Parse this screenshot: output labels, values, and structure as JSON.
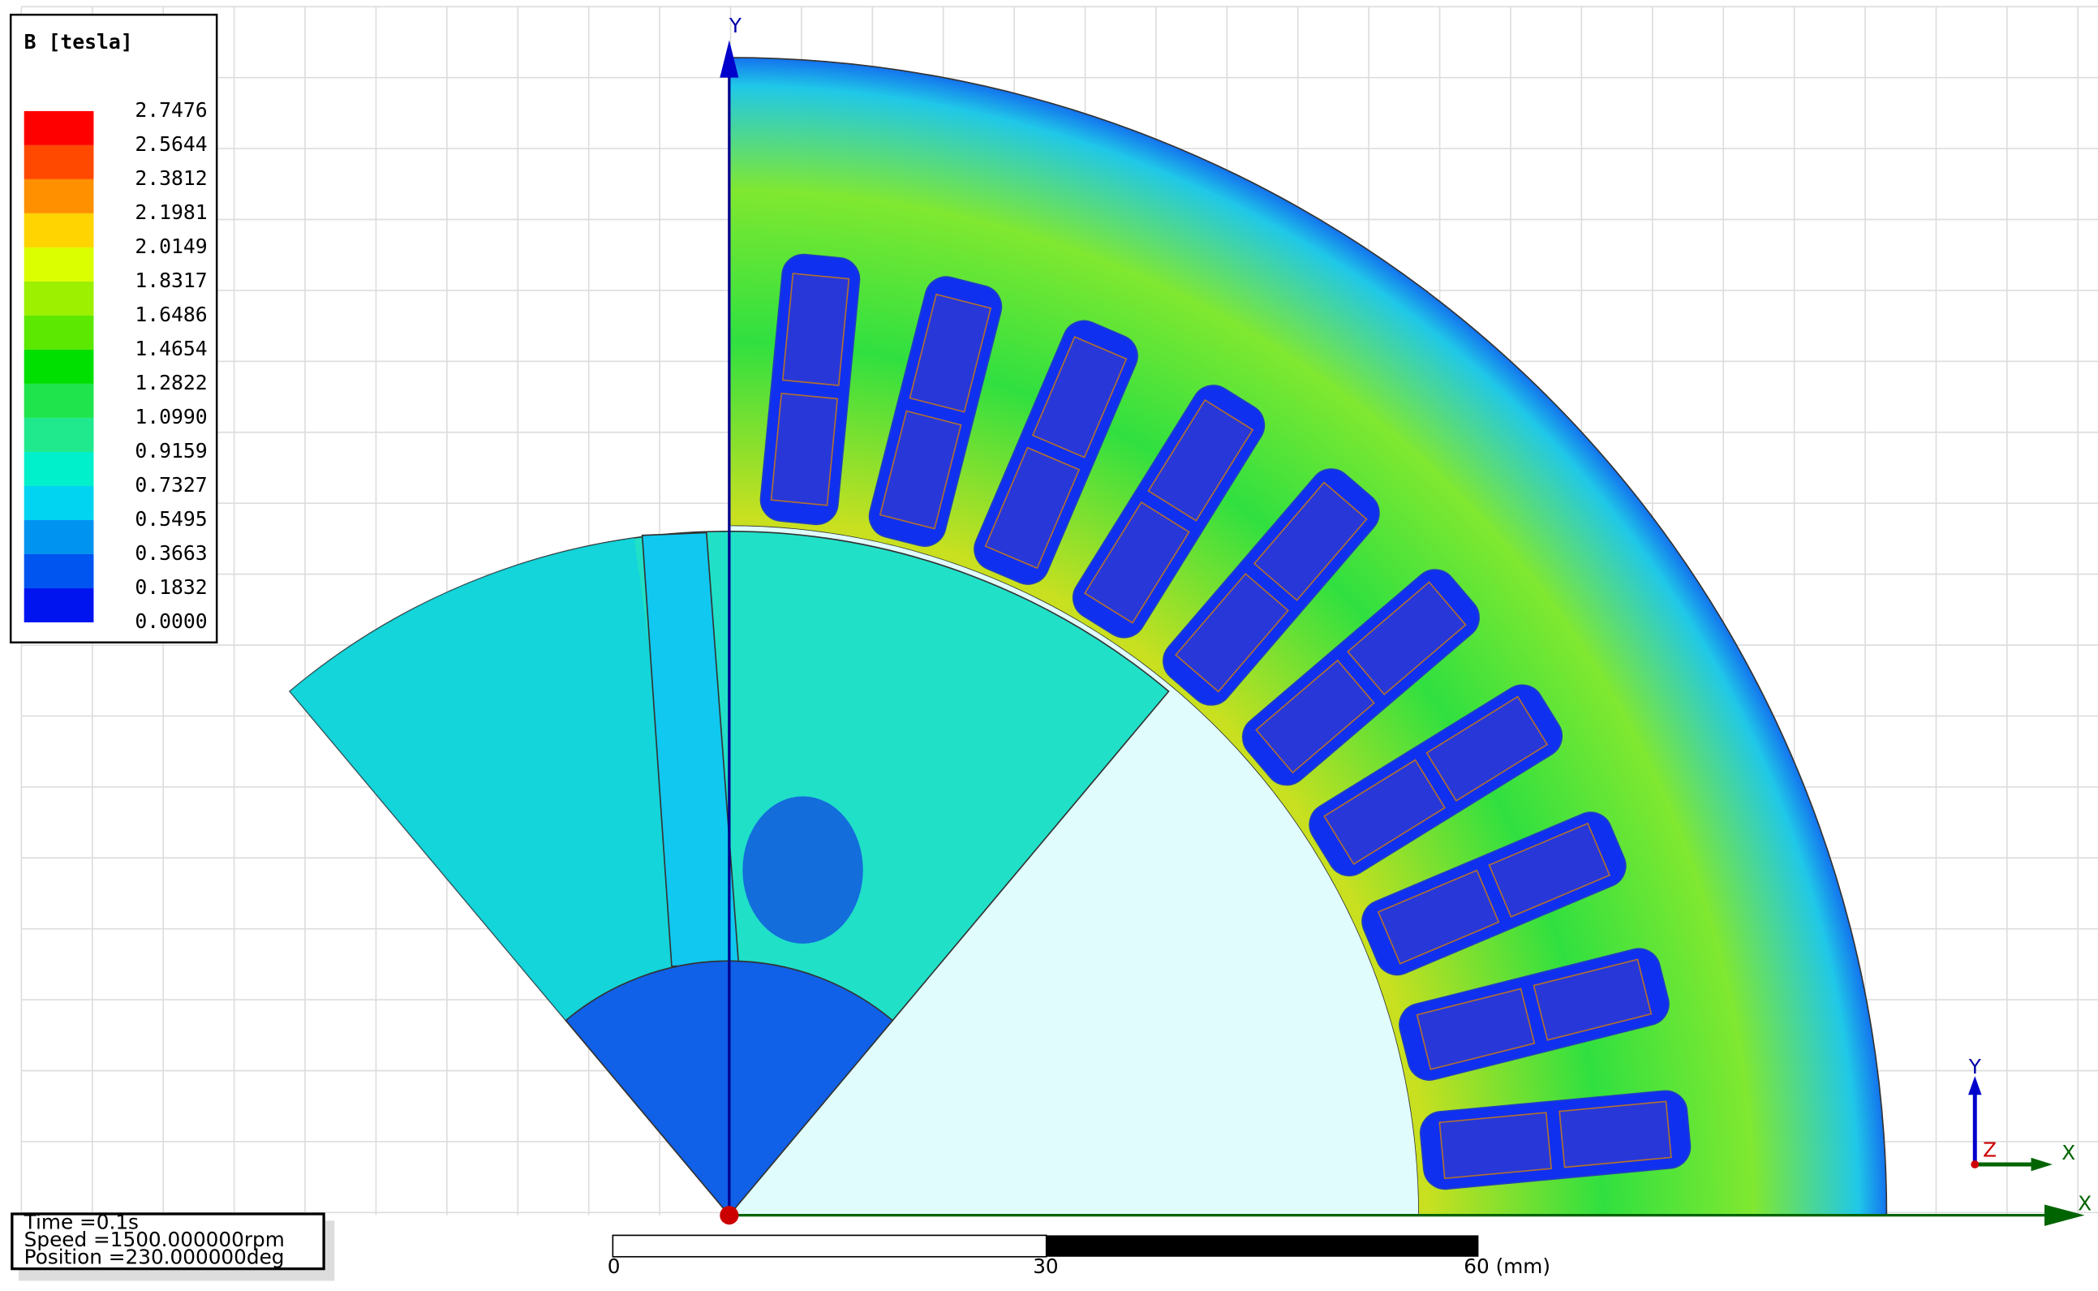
{
  "legend": {
    "title": "B [tesla]",
    "levels": [
      {
        "label": "2.7476",
        "color": "#ff0000"
      },
      {
        "label": "2.5644",
        "color": "#ff4800"
      },
      {
        "label": "2.3812",
        "color": "#ff9000"
      },
      {
        "label": "2.1981",
        "color": "#ffd400"
      },
      {
        "label": "2.0149",
        "color": "#dcff00"
      },
      {
        "label": "1.8317",
        "color": "#9cf000"
      },
      {
        "label": "1.6486",
        "color": "#5ce800"
      },
      {
        "label": "1.4654",
        "color": "#00e000"
      },
      {
        "label": "1.2822",
        "color": "#20e44c"
      },
      {
        "label": "1.0990",
        "color": "#20e88c"
      },
      {
        "label": "0.9159",
        "color": "#00f0cc"
      },
      {
        "label": "0.7327",
        "color": "#00d4f0"
      },
      {
        "label": "0.5495",
        "color": "#0094f0"
      },
      {
        "label": "0.3663",
        "color": "#0054f0"
      },
      {
        "label": "0.1832",
        "color": "#0014f0"
      },
      {
        "label": "0.0000",
        "color": "#0000ff"
      }
    ]
  },
  "info": {
    "lines": [
      "Time    =0.1s",
      "Speed   =1500.000000rpm",
      "Position =230.000000deg"
    ]
  },
  "scale_bar": {
    "labels": [
      "0",
      "30",
      "60 (mm)"
    ]
  },
  "axes": {
    "x": "X",
    "y": "Y",
    "z": "Z"
  }
}
